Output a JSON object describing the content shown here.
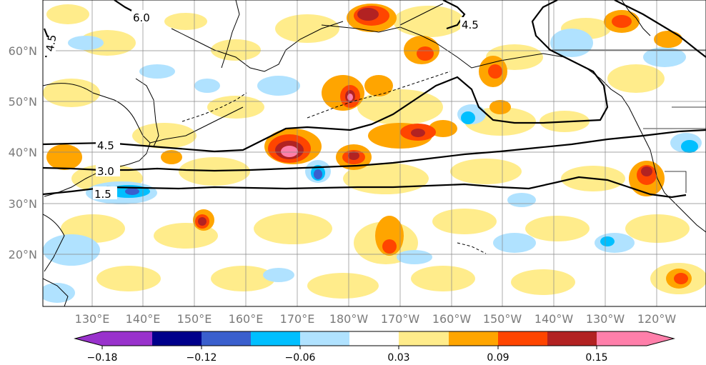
{
  "map": {
    "lon_ticks": [
      "130°E",
      "140°E",
      "150°E",
      "160°E",
      "170°E",
      "180°W",
      "170°W",
      "160°W",
      "150°W",
      "140°W",
      "130°W",
      "120°W"
    ],
    "lat_ticks": [
      "60°N",
      "50°N",
      "40°N",
      "30°N",
      "20°N"
    ],
    "contour_labels": [
      "6.0",
      "4.5",
      "4.5",
      "4.5",
      "3.0",
      "1.5"
    ]
  },
  "colorbar": {
    "colors": [
      "#9932cc",
      "#00008b",
      "#3a5fcd",
      "#00bfff",
      "#b0e2ff",
      "#ffffff",
      "#ffec8b",
      "#ffa500",
      "#ff4500",
      "#b22222",
      "#ff7faa"
    ],
    "tick_labels": [
      "−0.18",
      "−0.12",
      "−0.06",
      "0.03",
      "0.09",
      "0.15"
    ]
  }
}
